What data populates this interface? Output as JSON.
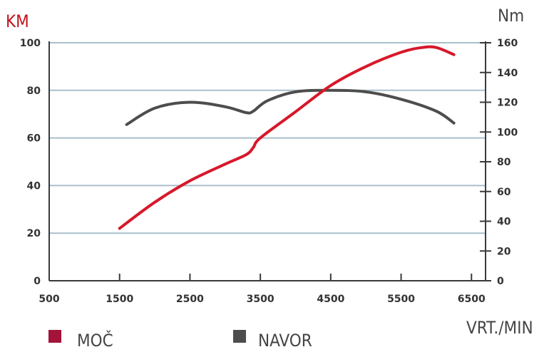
{
  "chart_data": {
    "type": "line",
    "y_left_label": "KM",
    "y_right_label": "Nm",
    "x_label": "VRT./MIN",
    "xlim": [
      500,
      6700
    ],
    "ylim_left": [
      0,
      100
    ],
    "ylim_right": [
      0,
      160
    ],
    "x_ticks": [
      500,
      1500,
      2500,
      3500,
      4500,
      5500,
      6500
    ],
    "y_left_ticks": [
      0,
      20,
      40,
      60,
      80,
      100
    ],
    "y_right_ticks": [
      0,
      20,
      40,
      60,
      80,
      100,
      120,
      140,
      160
    ],
    "grid": true,
    "legend_position": "bottom-left",
    "series": [
      {
        "name": "MOČ",
        "axis": "left",
        "color": "#d7182a",
        "x": [
          1500,
          2000,
          2500,
          3000,
          3300,
          3400,
          3500,
          4000,
          4500,
          5000,
          5500,
          5800,
          6000,
          6250
        ],
        "y": [
          22,
          33,
          42,
          49,
          53,
          56,
          60,
          71,
          82,
          90,
          96,
          98,
          98,
          95
        ]
      },
      {
        "name": "NAVOR",
        "axis": "right",
        "color": "#4d4d4d",
        "x": [
          1600,
          2000,
          2500,
          3000,
          3300,
          3400,
          3600,
          4000,
          4500,
          5000,
          5500,
          6000,
          6250
        ],
        "y": [
          105,
          116,
          120,
          117,
          113,
          114,
          121,
          127,
          128,
          127,
          122,
          114,
          106
        ]
      }
    ]
  }
}
